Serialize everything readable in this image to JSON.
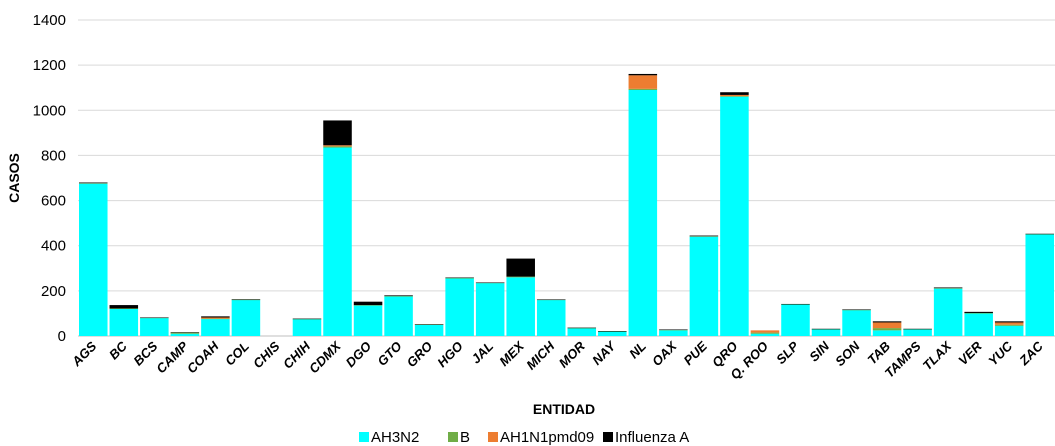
{
  "chart_data": {
    "type": "bar",
    "stacked": true,
    "xlabel": "ENTIDAD",
    "ylabel": "CASOS",
    "ylim": [
      0,
      1400
    ],
    "yticks": [
      0,
      200,
      400,
      600,
      800,
      1000,
      1200,
      1400
    ],
    "grid": true,
    "legend_position": "bottom",
    "categories": [
      "AGS",
      "BC",
      "BCS",
      "CAMP",
      "COAH",
      "COL",
      "CHIS",
      "CHIH",
      "CDMX",
      "DGO",
      "GTO",
      "GRO",
      "HGO",
      "JAL",
      "MEX",
      "MICH",
      "MOR",
      "NAY",
      "NL",
      "OAX",
      "PUE",
      "QRO",
      "Q. ROO",
      "SLP",
      "SIN",
      "SON",
      "TAB",
      "TAMPS",
      "TLAX",
      "VER",
      "YUC",
      "ZAC"
    ],
    "series": [
      {
        "name": "AH3N2",
        "color": "#00FFFF",
        "values": [
          675,
          120,
          80,
          10,
          75,
          160,
          0,
          75,
          835,
          135,
          175,
          50,
          255,
          235,
          260,
          160,
          35,
          20,
          1090,
          25,
          440,
          1060,
          10,
          140,
          30,
          115,
          25,
          30,
          210,
          100,
          45,
          450
        ]
      },
      {
        "name": "B",
        "color": "#70AD47",
        "values": [
          2,
          2,
          1,
          5,
          2,
          1,
          0,
          1,
          5,
          2,
          2,
          1,
          2,
          1,
          3,
          1,
          1,
          1,
          5,
          2,
          2,
          3,
          5,
          1,
          1,
          1,
          10,
          1,
          2,
          2,
          5,
          2
        ]
      },
      {
        "name": "AH1N1pmd09",
        "color": "#ED7D31",
        "values": [
          0,
          0,
          0,
          0,
          5,
          0,
          0,
          0,
          5,
          0,
          0,
          0,
          0,
          0,
          0,
          0,
          0,
          0,
          60,
          0,
          0,
          5,
          10,
          0,
          0,
          0,
          25,
          0,
          0,
          0,
          10,
          0
        ]
      },
      {
        "name": "Influenza A",
        "color": "#000000",
        "values": [
          3,
          15,
          1,
          2,
          5,
          2,
          0,
          1,
          110,
          15,
          3,
          1,
          2,
          1,
          80,
          1,
          1,
          1,
          6,
          2,
          3,
          12,
          0,
          1,
          1,
          2,
          5,
          1,
          3,
          5,
          5,
          1
        ]
      }
    ]
  }
}
